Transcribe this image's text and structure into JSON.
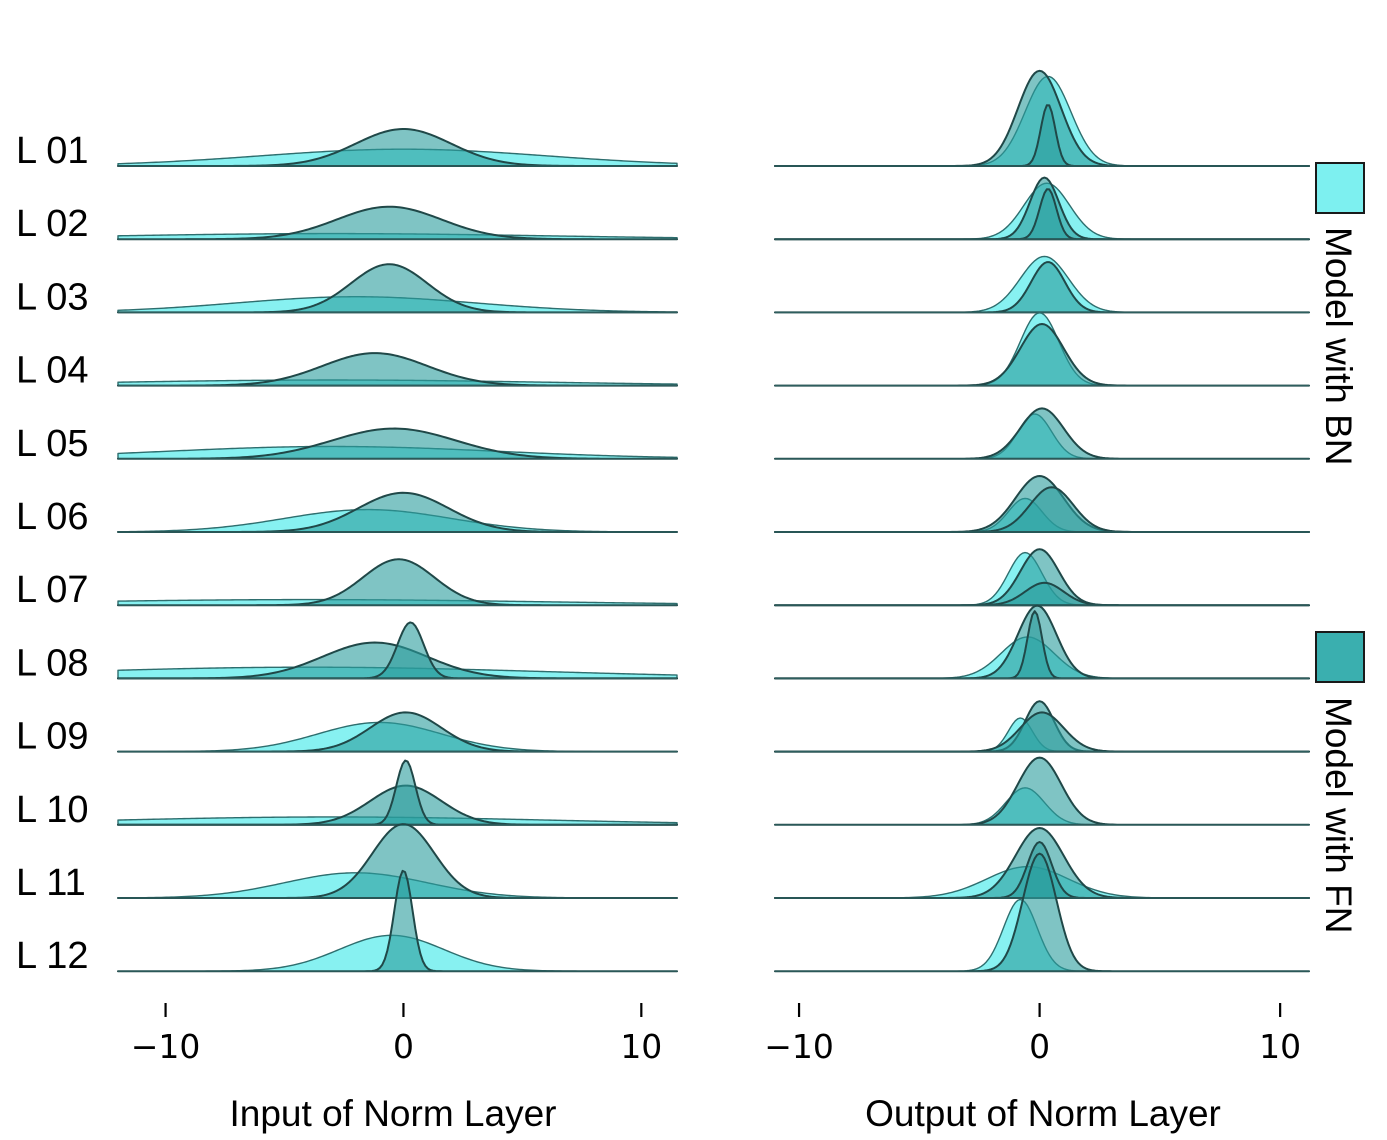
{
  "chart_data": {
    "type": "ridgeline",
    "rows": [
      "L 01",
      "L 02",
      "L 03",
      "L 04",
      "L 05",
      "L 06",
      "L 07",
      "L 08",
      "L 09",
      "L 10",
      "L 11",
      "L 12"
    ],
    "legend": [
      {
        "label": "Model with BN",
        "color": "#7DF0F0"
      },
      {
        "label": "Model with FN",
        "color": "#3AAFAF"
      }
    ],
    "panels": [
      {
        "xlabel": "Input of Norm Layer",
        "xlim": [
          -12,
          11.5
        ],
        "xticks": [
          -10,
          0,
          10
        ],
        "xtick_labels": [
          "−10",
          "0",
          "10"
        ],
        "series": [
          {
            "name": "Model with BN",
            "curves": [
              [
                {
                  "mu": 0.0,
                  "sd": 6.0,
                  "h": 0.3
                }
              ],
              [
                {
                  "mu": -3.0,
                  "sd": 9.0,
                  "h": 0.1
                }
              ],
              [
                {
                  "mu": -2.0,
                  "sd": 5.0,
                  "h": 0.28
                }
              ],
              [
                {
                  "mu": -3.0,
                  "sd": 9.0,
                  "h": 0.1
                }
              ],
              [
                {
                  "mu": -3.0,
                  "sd": 7.0,
                  "h": 0.22
                }
              ],
              [
                {
                  "mu": -1.5,
                  "sd": 3.5,
                  "h": 0.4
                }
              ],
              [
                {
                  "mu": -4.0,
                  "sd": 10.0,
                  "h": 0.1
                }
              ],
              [
                {
                  "mu": -4.0,
                  "sd": 10.0,
                  "h": 0.2
                }
              ],
              [
                {
                  "mu": -1.0,
                  "sd": 2.6,
                  "h": 0.52
                }
              ],
              [
                {
                  "mu": -3.0,
                  "sd": 9.0,
                  "h": 0.14
                }
              ],
              [
                {
                  "mu": -2.0,
                  "sd": 3.0,
                  "h": 0.45
                }
              ],
              [
                {
                  "mu": -0.5,
                  "sd": 2.2,
                  "h": 0.64
                }
              ]
            ]
          },
          {
            "name": "Model with FN",
            "curves": [
              [
                {
                  "mu": 0.0,
                  "sd": 2.0,
                  "h": 0.66
                }
              ],
              [
                {
                  "mu": -0.6,
                  "sd": 2.2,
                  "h": 0.58
                }
              ],
              [
                {
                  "mu": -0.6,
                  "sd": 1.6,
                  "h": 0.86
                }
              ],
              [
                {
                  "mu": -1.2,
                  "sd": 2.2,
                  "h": 0.58
                }
              ],
              [
                {
                  "mu": -0.4,
                  "sd": 2.6,
                  "h": 0.54
                }
              ],
              [
                {
                  "mu": 0.0,
                  "sd": 1.9,
                  "h": 0.7
                }
              ],
              [
                {
                  "mu": -0.2,
                  "sd": 1.5,
                  "h": 0.82
                }
              ],
              [
                {
                  "mu": -1.2,
                  "sd": 2.2,
                  "h": 0.64
                },
                {
                  "mu": 0.3,
                  "sd": 0.55,
                  "h": 1.0
                }
              ],
              [
                {
                  "mu": 0.1,
                  "sd": 1.5,
                  "h": 0.7
                }
              ],
              [
                {
                  "mu": 0.1,
                  "sd": 1.5,
                  "h": 0.7
                },
                {
                  "mu": 0.1,
                  "sd": 0.4,
                  "h": 1.15
                }
              ],
              [
                {
                  "mu": 0.0,
                  "sd": 1.3,
                  "h": 1.32
                }
              ],
              [
                {
                  "mu": 0.0,
                  "sd": 0.38,
                  "h": 1.8
                }
              ]
            ]
          }
        ]
      },
      {
        "xlabel": "Output of Norm Layer",
        "xlim": [
          -11,
          11.2
        ],
        "xticks": [
          -10,
          0,
          10
        ],
        "xtick_labels": [
          "−10",
          "0",
          "10"
        ],
        "series": [
          {
            "name": "Model with BN",
            "curves": [
              [
                {
                  "mu": 0.35,
                  "sd": 0.95,
                  "h": 1.6
                }
              ],
              [
                {
                  "mu": 0.3,
                  "sd": 0.95,
                  "h": 1.0
                }
              ],
              [
                {
                  "mu": 0.2,
                  "sd": 1.0,
                  "h": 1.0
                }
              ],
              [
                {
                  "mu": 0.0,
                  "sd": 0.8,
                  "h": 1.3
                }
              ],
              [
                {
                  "mu": -0.2,
                  "sd": 0.7,
                  "h": 0.8
                }
              ],
              [
                {
                  "mu": -0.6,
                  "sd": 0.7,
                  "h": 0.6
                }
              ],
              [
                {
                  "mu": -0.6,
                  "sd": 0.7,
                  "h": 0.94
                }
              ],
              [
                {
                  "mu": -0.5,
                  "sd": 1.1,
                  "h": 0.74
                }
              ],
              [
                {
                  "mu": -0.8,
                  "sd": 0.5,
                  "h": 0.6
                }
              ],
              [
                {
                  "mu": -0.6,
                  "sd": 0.8,
                  "h": 0.66
                }
              ],
              [
                {
                  "mu": -0.5,
                  "sd": 1.7,
                  "h": 0.56
                }
              ],
              [
                {
                  "mu": -0.8,
                  "sd": 0.7,
                  "h": 1.28
                }
              ]
            ]
          },
          {
            "name": "Model with FN",
            "curves": [
              [
                {
                  "mu": 0.0,
                  "sd": 0.9,
                  "h": 1.7
                },
                {
                  "mu": 0.35,
                  "sd": 0.3,
                  "h": 1.1
                }
              ],
              [
                {
                  "mu": 0.2,
                  "sd": 0.6,
                  "h": 1.1
                },
                {
                  "mu": 0.35,
                  "sd": 0.35,
                  "h": 0.9
                }
              ],
              [
                {
                  "mu": 0.35,
                  "sd": 0.7,
                  "h": 0.9
                }
              ],
              [
                {
                  "mu": 0.1,
                  "sd": 0.9,
                  "h": 1.1
                }
              ],
              [
                {
                  "mu": 0.1,
                  "sd": 0.9,
                  "h": 0.9
                }
              ],
              [
                {
                  "mu": 0.0,
                  "sd": 1.0,
                  "h": 1.0
                },
                {
                  "mu": 0.5,
                  "sd": 0.9,
                  "h": 0.8
                }
              ],
              [
                {
                  "mu": 0.0,
                  "sd": 0.8,
                  "h": 1.0
                },
                {
                  "mu": 0.2,
                  "sd": 0.8,
                  "h": 0.4
                }
              ],
              [
                {
                  "mu": -0.1,
                  "sd": 0.8,
                  "h": 1.3
                },
                {
                  "mu": -0.2,
                  "sd": 0.3,
                  "h": 1.2
                }
              ],
              [
                {
                  "mu": 0.0,
                  "sd": 0.6,
                  "h": 0.9
                },
                {
                  "mu": 0.1,
                  "sd": 0.9,
                  "h": 0.7
                }
              ],
              [
                {
                  "mu": 0.0,
                  "sd": 0.9,
                  "h": 1.2
                }
              ],
              [
                {
                  "mu": 0.0,
                  "sd": 1.0,
                  "h": 1.25
                },
                {
                  "mu": 0.0,
                  "sd": 0.5,
                  "h": 1.0
                }
              ],
              [
                {
                  "mu": 0.0,
                  "sd": 0.7,
                  "h": 2.1
                }
              ]
            ]
          }
        ]
      }
    ]
  }
}
